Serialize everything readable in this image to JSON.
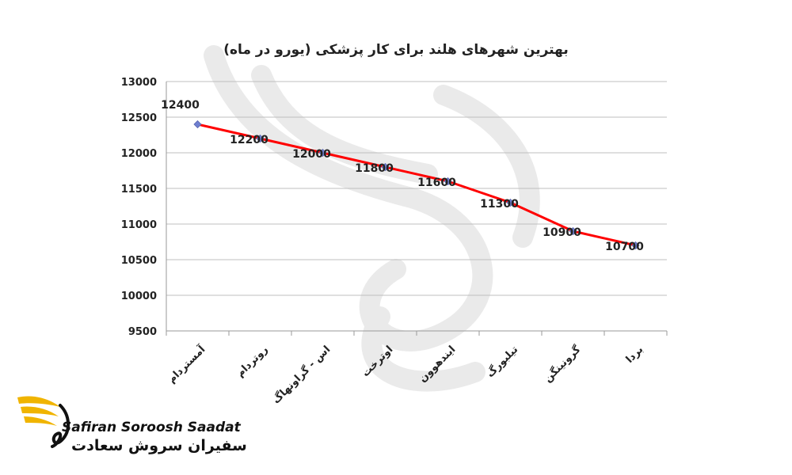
{
  "chart_data": {
    "type": "line",
    "title": "بهترین شهرهای هلند برای کار پزشکی (یورو در ماه)",
    "categories": [
      "آمستردام",
      "روتردام",
      "اس - گراونهاگ",
      "اوترخت",
      "ایندهوون",
      "تیلبورگ",
      "گرونینگن",
      "بردا"
    ],
    "series": [
      {
        "values": [
          12400,
          12200,
          12000,
          11800,
          11600,
          11300,
          10900,
          10700
        ]
      }
    ],
    "data_labels": [
      "12400",
      "12200",
      "12000",
      "11800",
      "11600",
      "11300",
      "10900",
      "10700"
    ],
    "ylim": [
      9500,
      13000
    ],
    "yticks": [
      9500,
      10000,
      10500,
      11000,
      11500,
      12000,
      12500,
      13000
    ],
    "xlabel": "",
    "ylabel": "",
    "grid": true,
    "line_color": "#ff0000",
    "marker_color": "#6f7fd0",
    "marker_shape": "diamond"
  },
  "brand": {
    "name_en": "Safiran Soroosh Saadat",
    "name_fa": "سفیران سروش سعادت",
    "logo": "swan-wing-logo",
    "accent": "#f0b400"
  },
  "watermark": "swan-wing-watermark"
}
